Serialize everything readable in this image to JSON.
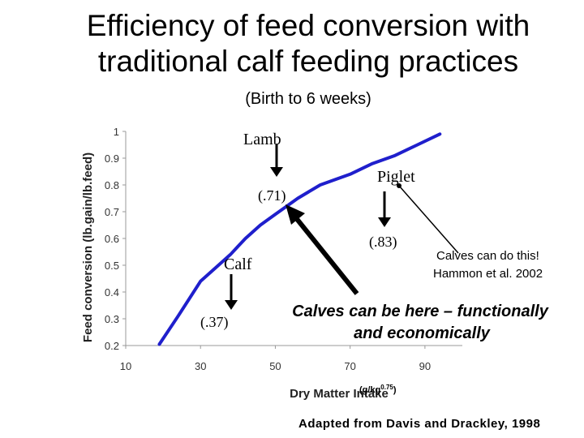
{
  "title_line1": "Efficiency of feed conversion with",
  "title_line2": "traditional calf feeding practices",
  "subtitle": "(Birth to 6 weeks)",
  "credit": "Adapted from Davis and Drackley, 1998",
  "chart_data": {
    "type": "line",
    "xlabel": "Dry Matter Intake",
    "xlabel_units": "(g/kg0.75)",
    "ylabel": "Feed conversion (lb.gain/lb.feed)",
    "xlim": [
      10,
      100
    ],
    "ylim": [
      0.2,
      1.0
    ],
    "x_ticks": [
      10,
      30,
      50,
      70,
      90
    ],
    "y_ticks": [
      0.2,
      0.3,
      0.4,
      0.5,
      0.6,
      0.7,
      0.8,
      0.9,
      1.0
    ],
    "y_tick_labels": [
      "0.2",
      "0.3",
      "0.4",
      "0.5",
      "0.6",
      "0.7",
      "0.8",
      "0.9",
      "1"
    ],
    "grid": false,
    "series_color": "#1f1fcc",
    "series": [
      {
        "x": [
          19,
          24,
          30,
          34,
          38,
          40,
          42,
          46,
          50,
          56,
          62,
          66,
          70,
          76,
          82,
          88,
          94
        ],
        "y": [
          0.205,
          0.31,
          0.44,
          0.49,
          0.54,
          0.57,
          0.6,
          0.65,
          0.69,
          0.75,
          0.8,
          0.82,
          0.84,
          0.88,
          0.91,
          0.95,
          0.99
        ]
      }
    ],
    "annotations": {
      "lamb": "Lamb",
      "lamb_value": "(.71)",
      "piglet": "Piglet",
      "piglet_value": "(.83)",
      "calf": "Calf",
      "calf_value": "(.37)",
      "calves_can_do": "Calves can do this!",
      "citation": "Hammon et al. 2002",
      "calves_here_line1": "Calves can be here – functionally",
      "calves_here_line2": "and economically"
    }
  }
}
